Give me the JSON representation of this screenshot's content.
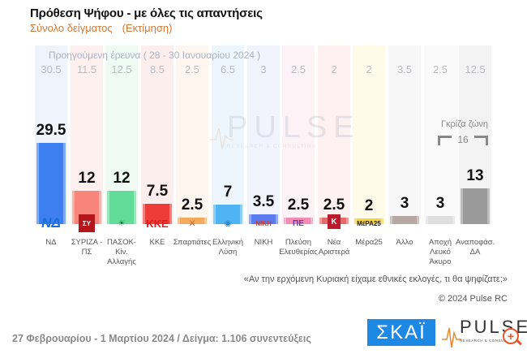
{
  "header": {
    "title": "Πρόθεση Ψήφου - με όλες τις απαντήσεις",
    "subtitle": "Σύνολο δείγματος",
    "subtitle_note": "(Εκτίμηση)"
  },
  "previous_survey": {
    "caption": "Προηγούμενη έρευνα ( 28 - 30 Ιανουαρίου 2024 )"
  },
  "grey_zone": {
    "label": "Γκρίζα ζώνη",
    "value": "16"
  },
  "watermark": {
    "word": "PULSE",
    "sub": "RESEARCH & CONSULTING"
  },
  "question": "«Αν την ερχόμενη Κυριακή είχαμε εθνικές εκλογές, τι θα ψηφίζατε;»",
  "copyright": "© 2024 Pulse RC",
  "footer": {
    "fieldwork": "27 Φεβρουαρίου - 1 Μαρτίου 2024  /  Δείγμα:  1.106 συνεντεύξεις",
    "skai_logo": "ΣΚΑΪ",
    "pulse_logo": "PULSE",
    "pulse_sub": "RESEARCH & CONSULTING",
    "zoom_icon": "+"
  },
  "parties": [
    {
      "label": "ΝΔ",
      "value": "29.5",
      "prev": "30.5",
      "logo": "ΝΔ",
      "color": "#3d7ff0",
      "bg": "#eef3fc",
      "logo_color": "#1a6fd6"
    },
    {
      "label": "ΣΥΡΙΖΑ - ΠΣ",
      "value": "12",
      "prev": "11.5",
      "logo": "ΣΥ",
      "color": "#f8857a",
      "bg": "#fdf0ef",
      "logo_color": "#b3161b"
    },
    {
      "label": "ΠΑΣΟΚ-Κίν. Αλλαγής",
      "value": "12",
      "prev": "12.5",
      "logo": "☀",
      "color": "#62dc99",
      "bg": "#eefaf3",
      "logo_color": "#0b7a35"
    },
    {
      "label": "ΚΚΕ",
      "value": "7.5",
      "prev": "8.5",
      "logo": "ΚΚΕ",
      "color": "#ef3c38",
      "bg": "#fdeeee",
      "logo_color": "#e21b1b"
    },
    {
      "label": "Σπαρτιάτες",
      "value": "2.5",
      "prev": "2.5",
      "logo": "⚔",
      "color": "#f5a95a",
      "bg": "#fef6ef",
      "logo_color": "#b04b1b"
    },
    {
      "label": "Ελληνική Λύση",
      "value": "7",
      "prev": "6.5",
      "logo": "◉",
      "color": "#4fb4f3",
      "bg": "#eef6fd",
      "logo_color": "#2a87c9"
    },
    {
      "label": "ΝΙΚΗ",
      "value": "3.5",
      "prev": "3",
      "logo": "ΝΙΚΗ",
      "color": "#5a7cf0",
      "bg": "#f1f3fd",
      "logo_color": "#c73b2b"
    },
    {
      "label": "Πλεύση Ελευθερίας",
      "value": "2.5",
      "prev": "2.5",
      "logo": "ΠΕ",
      "color": "#f48bb2",
      "bg": "#fdf2f6",
      "logo_color": "#6a3ab0"
    },
    {
      "label": "Νέα Αριστερά",
      "value": "2.5",
      "prev": "2",
      "logo": "Κ",
      "color": "#e56b6b",
      "bg": "#fdf1f1",
      "logo_color": "#b91c2b"
    },
    {
      "label": "Μέρα25",
      "value": "2",
      "prev": "2",
      "logo": "ΜέΡΑ25",
      "color": "#f7d53a",
      "bg": "#fffbea",
      "logo_color": "#222"
    },
    {
      "label": "Άλλο",
      "value": "3",
      "prev": "3.5",
      "logo": "",
      "color": "#b8a8a4",
      "bg": "#f8f7f7",
      "logo_color": "#999"
    },
    {
      "label": "Αποχή Λευκό Άκυρο",
      "value": "3",
      "prev": "2.5",
      "logo": "",
      "color": "#dedede",
      "bg": "#fafafa",
      "logo_color": "#999"
    },
    {
      "label": "Αναποφάσ. ΔΑ",
      "value": "13",
      "prev": "12.5",
      "logo": "",
      "color": "#9a9a9a",
      "bg": "#f3f3f3",
      "logo_color": "#999"
    }
  ],
  "chart_data": {
    "type": "bar",
    "title": "Πρόθεση Ψήφου - με όλες τις απαντήσεις",
    "subtitle": "Σύνολο δείγματος (Εκτίμηση)",
    "categories": [
      "ΝΔ",
      "ΣΥΡΙΖΑ - ΠΣ",
      "ΠΑΣΟΚ-Κίν. Αλλαγής",
      "ΚΚΕ",
      "Σπαρτιάτες",
      "Ελληνική Λύση",
      "ΝΙΚΗ",
      "Πλεύση Ελευθερίας",
      "Νέα Αριστερά",
      "Μέρα25",
      "Άλλο",
      "Αποχή Λευκό Άκυρο",
      "Αναποφάσ. ΔΑ"
    ],
    "series": [
      {
        "name": "27 Φεβρουαρίου - 1 Μαρτίου 2024",
        "values": [
          29.5,
          12,
          12,
          7.5,
          2.5,
          7,
          3.5,
          2.5,
          2.5,
          2,
          3,
          3,
          13
        ]
      },
      {
        "name": "Προηγούμενη έρευνα ( 28 - 30 Ιανουαρίου 2024 )",
        "values": [
          30.5,
          11.5,
          12.5,
          8.5,
          2.5,
          6.5,
          3,
          2.5,
          2,
          2,
          3.5,
          2.5,
          12.5
        ]
      }
    ],
    "annotations": [
      "Γκρίζα ζώνη 16"
    ],
    "xlabel": "",
    "ylabel": "%",
    "ylim": [
      0,
      32
    ],
    "grid": false,
    "legend_position": "none"
  }
}
